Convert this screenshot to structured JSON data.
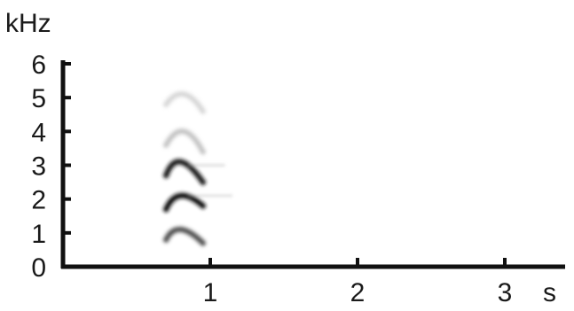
{
  "chart_data": {
    "type": "heatmap",
    "title": "",
    "xlabel": "s",
    "ylabel": "kHz",
    "xlim": [
      0,
      3.5
    ],
    "ylim": [
      0,
      6
    ],
    "x_ticks": [
      {
        "value": 1,
        "label": "1"
      },
      {
        "value": 2,
        "label": "2"
      },
      {
        "value": 3,
        "label": "3"
      }
    ],
    "y_ticks": [
      {
        "value": 0,
        "label": "0"
      },
      {
        "value": 1,
        "label": "1"
      },
      {
        "value": 2,
        "label": "2"
      },
      {
        "value": 3,
        "label": "3"
      },
      {
        "value": 4,
        "label": "4"
      },
      {
        "value": 5,
        "label": "5"
      },
      {
        "value": 6,
        "label": "6"
      }
    ],
    "grid": false,
    "colormap": "grayscale (dark = high energy)",
    "call": {
      "time_start": 0.7,
      "time_end": 1.0,
      "harmonics": [
        {
          "name": "fundamental",
          "peak_time": 0.8,
          "peak_khz": 1.1,
          "start_khz": 0.8,
          "end_khz": 0.7,
          "intensity": 0.75
        },
        {
          "name": "harmonic-2",
          "peak_time": 0.8,
          "peak_khz": 2.1,
          "start_khz": 1.7,
          "end_khz": 1.8,
          "intensity": 1.0
        },
        {
          "name": "harmonic-3",
          "peak_time": 0.8,
          "peak_khz": 3.1,
          "start_khz": 2.7,
          "end_khz": 2.5,
          "intensity": 0.95
        },
        {
          "name": "harmonic-4",
          "peak_time": 0.82,
          "peak_khz": 4.0,
          "start_khz": 3.6,
          "end_khz": 3.4,
          "intensity": 0.25
        },
        {
          "name": "harmonic-5",
          "peak_time": 0.82,
          "peak_khz": 5.1,
          "start_khz": 4.8,
          "end_khz": 4.6,
          "intensity": 0.15
        }
      ],
      "faint_tails": [
        {
          "time_start": 0.85,
          "time_end": 1.1,
          "khz": 3.0,
          "intensity": 0.1
        },
        {
          "time_start": 0.85,
          "time_end": 1.15,
          "khz": 2.1,
          "intensity": 0.1
        }
      ]
    }
  }
}
